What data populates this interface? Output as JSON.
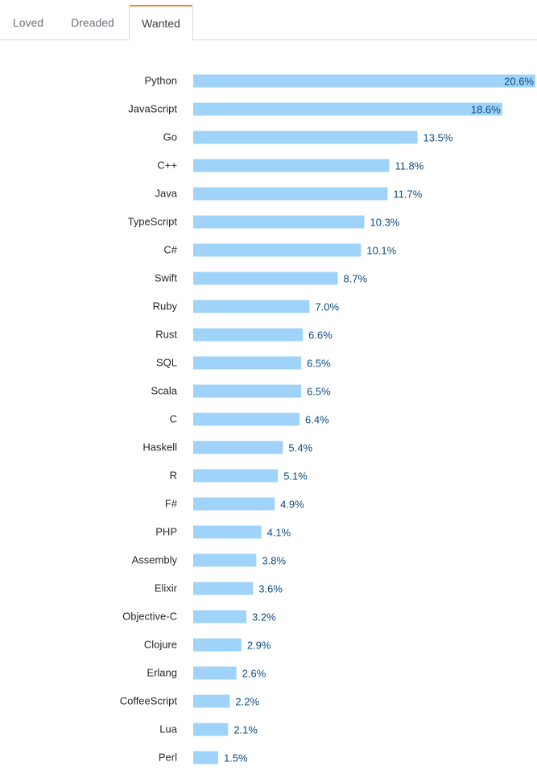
{
  "tabs": [
    {
      "label": "Loved",
      "active": false
    },
    {
      "label": "Dreaded",
      "active": false
    },
    {
      "label": "Wanted",
      "active": true
    }
  ],
  "colors": {
    "bar": "#9fd3f9",
    "value_text": "#0c4a80",
    "active_tab_accent": "#f48024"
  },
  "chart_data": {
    "type": "bar",
    "orientation": "horizontal",
    "unit": "%",
    "xlim": [
      0,
      20.6
    ],
    "grid": false,
    "categories": [
      "Python",
      "JavaScript",
      "Go",
      "C++",
      "Java",
      "TypeScript",
      "C#",
      "Swift",
      "Ruby",
      "Rust",
      "SQL",
      "Scala",
      "C",
      "Haskell",
      "R",
      "F#",
      "PHP",
      "Assembly",
      "Elixir",
      "Objective-C",
      "Clojure",
      "Erlang",
      "CoffeeScript",
      "Lua",
      "Perl"
    ],
    "values": [
      20.6,
      18.6,
      13.5,
      11.8,
      11.7,
      10.3,
      10.1,
      8.7,
      7.0,
      6.6,
      6.5,
      6.5,
      6.4,
      5.4,
      5.1,
      4.9,
      4.1,
      3.8,
      3.6,
      3.2,
      2.9,
      2.6,
      2.2,
      2.1,
      1.5
    ],
    "value_labels": [
      "20.6%",
      "18.6%",
      "13.5%",
      "11.8%",
      "11.7%",
      "10.3%",
      "10.1%",
      "8.7%",
      "7.0%",
      "6.6%",
      "6.5%",
      "6.5%",
      "6.4%",
      "5.4%",
      "5.1%",
      "4.9%",
      "4.1%",
      "3.8%",
      "3.6%",
      "3.2%",
      "2.9%",
      "2.6%",
      "2.2%",
      "2.1%",
      "1.5%"
    ]
  }
}
